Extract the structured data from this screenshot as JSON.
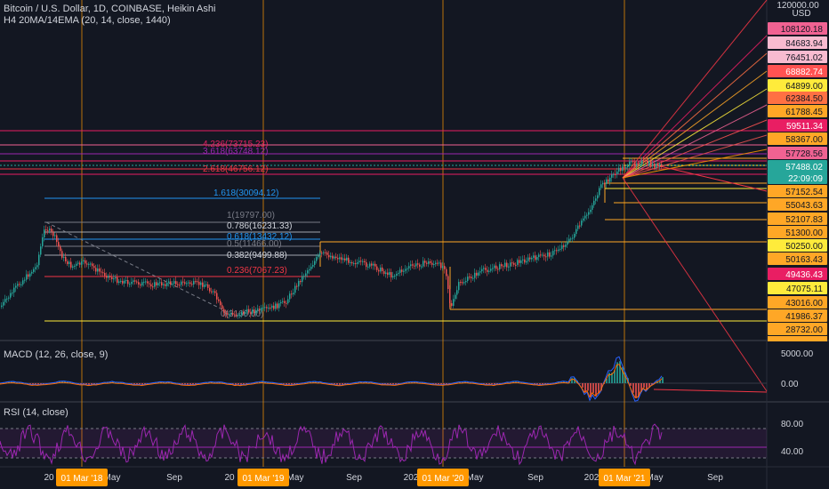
{
  "header": {
    "symbol": "Bitcoin / U.S. Dollar, 1D, COINBASE, Heikin Ashi",
    "indicator": "H4 20MA/14EMA (20, 14, close, 1440)"
  },
  "price_axis": {
    "top_label": "120000.00",
    "currency": "USD",
    "labels": [
      {
        "text": "108120.18",
        "bg": "#f06292",
        "fg": "#131722"
      },
      {
        "text": "84683.94",
        "bg": "#f8bbd0",
        "fg": "#131722"
      },
      {
        "text": "76451.02",
        "bg": "#f8bbd0",
        "fg": "#131722"
      },
      {
        "text": "68882.74",
        "bg": "#ff5252",
        "fg": "#ffffff"
      },
      {
        "text": "64899.00",
        "bg": "#ffeb3b",
        "fg": "#131722"
      },
      {
        "text": "62384.50",
        "bg": "#ff7043",
        "fg": "#131722"
      },
      {
        "text": "61788.45",
        "bg": "#ffa726",
        "fg": "#131722"
      },
      {
        "text": "59511.34",
        "bg": "#e91e63",
        "fg": "#ffffff"
      },
      {
        "text": "58367.00",
        "bg": "#ffa726",
        "fg": "#131722"
      },
      {
        "text": "57728.56",
        "bg": "#f06292",
        "fg": "#131722"
      },
      {
        "text": "57488.02",
        "bg": "#26a69a",
        "fg": "#ffffff"
      },
      {
        "text": "22:09:09",
        "bg": "#26a69a",
        "fg": "#ffffff"
      },
      {
        "text": "57152.54",
        "bg": "#ffa726",
        "fg": "#131722"
      },
      {
        "text": "55043.63",
        "bg": "#ffa726",
        "fg": "#131722"
      },
      {
        "text": "52107.83",
        "bg": "#ffa726",
        "fg": "#131722"
      },
      {
        "text": "51300.00",
        "bg": "#ffa726",
        "fg": "#131722"
      },
      {
        "text": "50250.00",
        "bg": "#ffeb3b",
        "fg": "#131722"
      },
      {
        "text": "50163.43",
        "bg": "#ffa726",
        "fg": "#131722"
      },
      {
        "text": "49436.43",
        "bg": "#e91e63",
        "fg": "#ffffff"
      },
      {
        "text": "47075.11",
        "bg": "#ffeb3b",
        "fg": "#131722"
      },
      {
        "text": "43016.00",
        "bg": "#ffa726",
        "fg": "#131722"
      },
      {
        "text": "41986.37",
        "bg": "#ffa726",
        "fg": "#131722"
      },
      {
        "text": "28732.00",
        "bg": "#ffa726",
        "fg": "#131722"
      }
    ]
  },
  "fib_labels": [
    {
      "text": "4.236(73715.23)",
      "color": "#e91e63"
    },
    {
      "text": "3.618(63748.12)",
      "color": "#9c27b0"
    },
    {
      "text": "2.618(46756.12)",
      "color": "#f23645"
    },
    {
      "text": "1.618(30094.12)",
      "color": "#2196f3"
    },
    {
      "text": "1(19797.00)",
      "color": "#787b86"
    },
    {
      "text": "0.786(16231.33)",
      "color": "#d1d4dc"
    },
    {
      "text": "0.618(13432.12)",
      "color": "#2196f3"
    },
    {
      "text": "0.5(11466.00)",
      "color": "#787b86"
    },
    {
      "text": "0.382(9499.88)",
      "color": "#d1d4dc"
    },
    {
      "text": "0.236(7067.23)",
      "color": "#f23645"
    },
    {
      "text": "0(3160.00)",
      "color": "#787b86"
    }
  ],
  "macd": {
    "title": "MACD (12, 26, close, 9)",
    "axis": [
      "5000.00",
      "0.00"
    ]
  },
  "rsi": {
    "title": "RSI (14, close)",
    "axis": [
      "80.00",
      "40.00"
    ]
  },
  "time_axis": {
    "labels": [
      "20",
      "May",
      "Sep",
      "20",
      "May",
      "Sep",
      "202",
      "May",
      "Sep",
      "202",
      "May",
      "Sep"
    ],
    "highlights": [
      "01 Mar '18",
      "01 Mar '19",
      "01 Mar '20",
      "01 Mar '21"
    ]
  },
  "colors": {
    "background": "#131722",
    "up": "#26a69a",
    "down": "#ef5350",
    "highlight": "#ff9800",
    "rsi": "#9c27b0"
  }
}
